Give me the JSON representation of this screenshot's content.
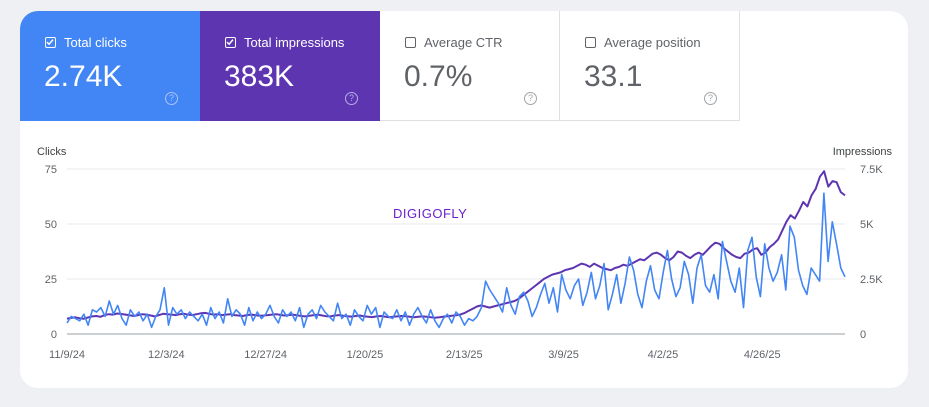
{
  "metrics": [
    {
      "key": "clicks",
      "label": "Total clicks",
      "value": "2.74K",
      "checked": true,
      "color": "#4285f4"
    },
    {
      "key": "impr",
      "label": "Total impressions",
      "value": "383K",
      "checked": true,
      "color": "#5e35b1"
    },
    {
      "key": "ctr",
      "label": "Average CTR",
      "value": "0.7%",
      "checked": false
    },
    {
      "key": "pos",
      "label": "Average position",
      "value": "33.1",
      "checked": false
    }
  ],
  "help_glyph": "?",
  "watermark": "DIGIGOFLY",
  "chart_data": {
    "type": "line",
    "left_axis_title": "Clicks",
    "right_axis_title": "Impressions",
    "left_ticks": [
      "0",
      "25",
      "50",
      "75"
    ],
    "left_tick_values": [
      0,
      25,
      50,
      75
    ],
    "right_ticks": [
      "0",
      "2.5K",
      "5K",
      "7.5K"
    ],
    "right_tick_values": [
      0,
      2500,
      5000,
      7500
    ],
    "ylim_left": [
      0,
      75
    ],
    "ylim_right": [
      0,
      7500
    ],
    "grid": true,
    "x_labels": [
      "11/9/24",
      "12/3/24",
      "12/27/24",
      "1/20/25",
      "2/13/25",
      "3/9/25",
      "4/2/25",
      "4/26/25"
    ],
    "x_label_days": [
      0,
      24,
      48,
      72,
      96,
      120,
      144,
      168
    ],
    "x_range_days": [
      0,
      188
    ],
    "series": [
      {
        "name": "Clicks",
        "axis": "left",
        "color": "#4285f4",
        "values": [
          5,
          8,
          7,
          6,
          9,
          4,
          11,
          10,
          12,
          8,
          15,
          9,
          13,
          7,
          4,
          11,
          8,
          10,
          6,
          9,
          3,
          8,
          11,
          21,
          4,
          12,
          9,
          11,
          7,
          10,
          8,
          6,
          9,
          4,
          12,
          7,
          10,
          5,
          16,
          8,
          11,
          9,
          4,
          12,
          6,
          10,
          7,
          9,
          13,
          8,
          5,
          11,
          8,
          10,
          6,
          12,
          3,
          9,
          11,
          7,
          13,
          10,
          8,
          6,
          14,
          7,
          9,
          4,
          11,
          8,
          6,
          13,
          9,
          12,
          3,
          10,
          8,
          7,
          11,
          6,
          10,
          4,
          9,
          12,
          8,
          5,
          11,
          6,
          3,
          7,
          9,
          5,
          10,
          8,
          4,
          7,
          6,
          8,
          12,
          24,
          20,
          17,
          14,
          10,
          21,
          13,
          9,
          17,
          19,
          15,
          8,
          12,
          18,
          23,
          14,
          21,
          10,
          27,
          20,
          16,
          22,
          25,
          13,
          19,
          28,
          16,
          22,
          32,
          11,
          18,
          27,
          14,
          23,
          35,
          29,
          18,
          12,
          24,
          31,
          20,
          16,
          28,
          38,
          25,
          17,
          21,
          33,
          27,
          14,
          30,
          36,
          22,
          19,
          27,
          16,
          42,
          33,
          24,
          19,
          30,
          12,
          38,
          44,
          26,
          17,
          41,
          30,
          24,
          28,
          36,
          20,
          49,
          44,
          29,
          22,
          18,
          30,
          27,
          24,
          64,
          33,
          51,
          41,
          30,
          26
        ]
      },
      {
        "name": "Impressions",
        "axis": "right",
        "color": "#5e35b1",
        "values": [
          700,
          730,
          760,
          720,
          690,
          750,
          800,
          820,
          780,
          860,
          900,
          880,
          930,
          910,
          880,
          850,
          820,
          860,
          900,
          880,
          840,
          800,
          860,
          920,
          900,
          880,
          860,
          900,
          920,
          880,
          860,
          900,
          940,
          960,
          920,
          880,
          900,
          860,
          880,
          900,
          860,
          840,
          820,
          860,
          880,
          860,
          830,
          840,
          860,
          880,
          900,
          870,
          840,
          860,
          880,
          850,
          820,
          800,
          830,
          860,
          880,
          840,
          810,
          800,
          840,
          860,
          830,
          810,
          790,
          820,
          840,
          800,
          780,
          770,
          800,
          820,
          790,
          760,
          780,
          800,
          820,
          810,
          780,
          760,
          780,
          800,
          780,
          760,
          740,
          760,
          790,
          810,
          830,
          850,
          880,
          950,
          1050,
          1150,
          1250,
          1300,
          1250,
          1200,
          1250,
          1300,
          1350,
          1400,
          1450,
          1500,
          1600,
          1750,
          1900,
          2050,
          2200,
          2350,
          2500,
          2600,
          2700,
          2750,
          2800,
          2900,
          2950,
          3000,
          3100,
          3200,
          3150,
          3050,
          3200,
          3100,
          3000,
          2950,
          2900,
          3000,
          3050,
          3150,
          3100,
          3200,
          3300,
          3400,
          3350,
          3500,
          3650,
          3700,
          3600,
          3450,
          3350,
          3500,
          3750,
          3700,
          3550,
          3450,
          3600,
          3700,
          3600,
          3800,
          4000,
          4150,
          4100,
          3900,
          3750,
          3600,
          3500,
          3450,
          3650,
          3700,
          3850,
          3900,
          3600,
          3700,
          3950,
          4100,
          4300,
          4700,
          5100,
          5400,
          5250,
          5600,
          6000,
          5800,
          6300,
          6600,
          7150,
          7400,
          6700,
          6950,
          6900,
          6450,
          6300
        ]
      }
    ]
  }
}
